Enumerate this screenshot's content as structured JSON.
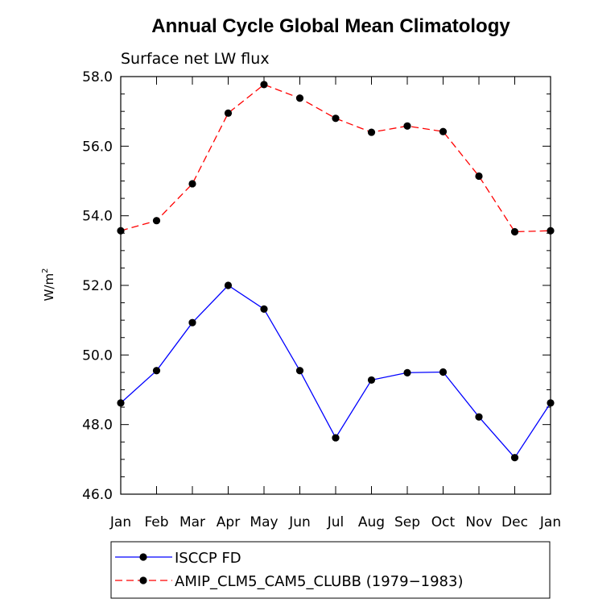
{
  "chart_data": {
    "type": "line",
    "title": "Annual Cycle Global Mean Climatology",
    "subtitle": "Surface net LW flux",
    "ylabel": "W/m",
    "ylabel_sup": "2",
    "xlabel": "",
    "categories": [
      "Jan",
      "Feb",
      "Mar",
      "Apr",
      "May",
      "Jun",
      "Jul",
      "Aug",
      "Sep",
      "Oct",
      "Nov",
      "Dec",
      "Jan"
    ],
    "ylim": [
      46.0,
      58.0
    ],
    "yticks": [
      "46.0",
      "48.0",
      "50.0",
      "52.0",
      "54.0",
      "56.0",
      "58.0"
    ],
    "series": [
      {
        "name": "ISCCP FD",
        "color": "#0000ff",
        "dash": "solid",
        "values": [
          48.62,
          49.55,
          50.93,
          52.0,
          51.32,
          49.55,
          47.62,
          49.28,
          49.49,
          49.51,
          48.22,
          47.05,
          48.62
        ]
      },
      {
        "name": "AMIP_CLM5_CAM5_CLUBB (1979−1983)",
        "color": "#ff0000",
        "dash": "dashed",
        "values": [
          53.57,
          53.86,
          54.92,
          56.95,
          57.77,
          57.38,
          56.8,
          56.4,
          56.58,
          56.42,
          55.14,
          53.54,
          53.57
        ]
      }
    ],
    "grid": false,
    "legend_position": "bottom"
  }
}
